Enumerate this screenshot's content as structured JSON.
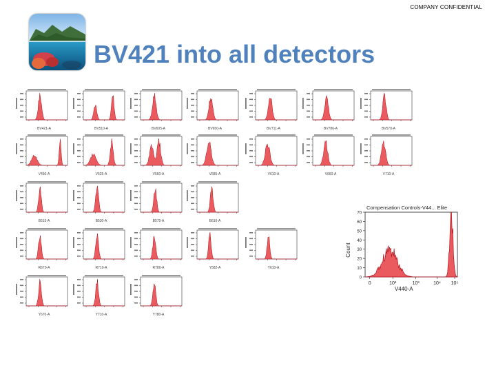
{
  "header": {
    "confidential": "COMPANY CONFIDENTIAL",
    "title": "BV421 into all detectors"
  },
  "colors": {
    "title": "#4f81bd",
    "histogram_fill": "#e8494f",
    "histogram_edge": "#b0131c",
    "frame": "#333333"
  },
  "chart_data": [
    {
      "type": "area",
      "row": 0,
      "col": 0,
      "peaks": [
        [
          1.5,
          0.18,
          0.9
        ]
      ],
      "xlabel": "BV421-A"
    },
    {
      "type": "area",
      "row": 0,
      "col": 1,
      "peaks": [
        [
          1.3,
          0.16,
          0.55
        ],
        [
          3.2,
          0.14,
          0.9
        ]
      ],
      "xlabel": "BV510-A"
    },
    {
      "type": "area",
      "row": 0,
      "col": 2,
      "peaks": [
        [
          1.5,
          0.2,
          0.85
        ]
      ],
      "xlabel": "BV605-A"
    },
    {
      "type": "area",
      "row": 0,
      "col": 3,
      "peaks": [
        [
          1.5,
          0.2,
          0.8
        ]
      ],
      "xlabel": "BV650-A"
    },
    {
      "type": "area",
      "row": 0,
      "col": 4,
      "peaks": [
        [
          1.6,
          0.2,
          0.85
        ]
      ],
      "xlabel": "BV711-A"
    },
    {
      "type": "area",
      "row": 0,
      "col": 5,
      "peaks": [
        [
          1.5,
          0.2,
          0.8
        ]
      ],
      "xlabel": "BV786-A"
    },
    {
      "type": "area",
      "row": 0,
      "col": 6,
      "peaks": [
        [
          1.5,
          0.18,
          0.85
        ]
      ],
      "xlabel": "BV570-A"
    },
    {
      "type": "area",
      "row": 1,
      "col": 0,
      "peaks": [
        [
          0.9,
          0.3,
          0.35
        ],
        [
          3.7,
          0.1,
          0.95
        ]
      ],
      "xlabel": "V450-A"
    },
    {
      "type": "area",
      "row": 1,
      "col": 1,
      "peaks": [
        [
          1.1,
          0.3,
          0.45
        ],
        [
          3.1,
          0.16,
          0.9
        ]
      ],
      "xlabel": "V525-A"
    },
    {
      "type": "area",
      "row": 1,
      "col": 2,
      "peaks": [
        [
          1.2,
          0.22,
          0.7
        ],
        [
          2.0,
          0.2,
          0.85
        ]
      ],
      "xlabel": "V560-A"
    },
    {
      "type": "area",
      "row": 1,
      "col": 3,
      "peaks": [
        [
          1.3,
          0.25,
          0.8
        ]
      ],
      "xlabel": "V585-A"
    },
    {
      "type": "area",
      "row": 1,
      "col": 4,
      "peaks": [
        [
          1.3,
          0.25,
          0.75
        ]
      ],
      "xlabel": "V610-A"
    },
    {
      "type": "area",
      "row": 1,
      "col": 5,
      "peaks": [
        [
          1.4,
          0.22,
          0.8
        ]
      ],
      "xlabel": "V660-A"
    },
    {
      "type": "area",
      "row": 1,
      "col": 6,
      "peaks": [
        [
          1.4,
          0.22,
          0.8
        ]
      ],
      "xlabel": "V710-A"
    },
    {
      "type": "area",
      "row": 2,
      "col": 0,
      "peaks": [
        [
          1.5,
          0.14,
          0.9
        ]
      ],
      "xlabel": "B515-A"
    },
    {
      "type": "area",
      "row": 2,
      "col": 1,
      "peaks": [
        [
          1.5,
          0.16,
          0.85
        ]
      ],
      "xlabel": "B530-A"
    },
    {
      "type": "area",
      "row": 2,
      "col": 2,
      "peaks": [
        [
          1.6,
          0.15,
          0.85
        ]
      ],
      "xlabel": "B575-A"
    },
    {
      "type": "area",
      "row": 2,
      "col": 3,
      "peaks": [
        [
          1.6,
          0.15,
          0.85
        ]
      ],
      "xlabel": "B610-A"
    },
    {
      "type": "area",
      "row": 3,
      "col": 0,
      "peaks": [
        [
          1.5,
          0.15,
          0.85
        ]
      ],
      "xlabel": "R670-A"
    },
    {
      "type": "area",
      "row": 3,
      "col": 1,
      "peaks": [
        [
          1.5,
          0.15,
          0.85
        ]
      ],
      "xlabel": "R710-A"
    },
    {
      "type": "area",
      "row": 3,
      "col": 2,
      "peaks": [
        [
          1.5,
          0.15,
          0.85
        ]
      ],
      "xlabel": "R780-A"
    },
    {
      "type": "area",
      "row": 3,
      "col": 3,
      "peaks": [
        [
          1.4,
          0.14,
          0.85
        ]
      ],
      "xlabel": "Y582-A"
    },
    {
      "type": "area",
      "row": 3,
      "col": 4,
      "peaks": [
        [
          1.4,
          0.14,
          0.85
        ]
      ],
      "xlabel": "Y610-A"
    },
    {
      "type": "area",
      "row": 4,
      "col": 0,
      "peaks": [
        [
          1.5,
          0.15,
          0.85
        ]
      ],
      "xlabel": "Y670-A"
    },
    {
      "type": "area",
      "row": 4,
      "col": 1,
      "peaks": [
        [
          1.5,
          0.15,
          0.85
        ]
      ],
      "xlabel": "Y710-A"
    },
    {
      "type": "area",
      "row": 4,
      "col": 2,
      "peaks": [
        [
          1.5,
          0.15,
          0.85
        ]
      ],
      "xlabel": "Y780-A"
    }
  ],
  "zoom_chart": {
    "title": "Compensation Controls-V44... Elite",
    "xlabel": "V440-A",
    "ylabel": "Count",
    "xticks": [
      "0",
      "10²",
      "10³",
      "10⁴",
      "10⁵"
    ],
    "yticks": [
      "0",
      "10",
      "20",
      "30",
      "40",
      "50",
      "60",
      "70"
    ],
    "ylim": [
      0,
      70
    ],
    "peaks": [
      [
        1.2,
        0.35,
        30
      ],
      [
        4.2,
        0.08,
        68
      ]
    ]
  }
}
